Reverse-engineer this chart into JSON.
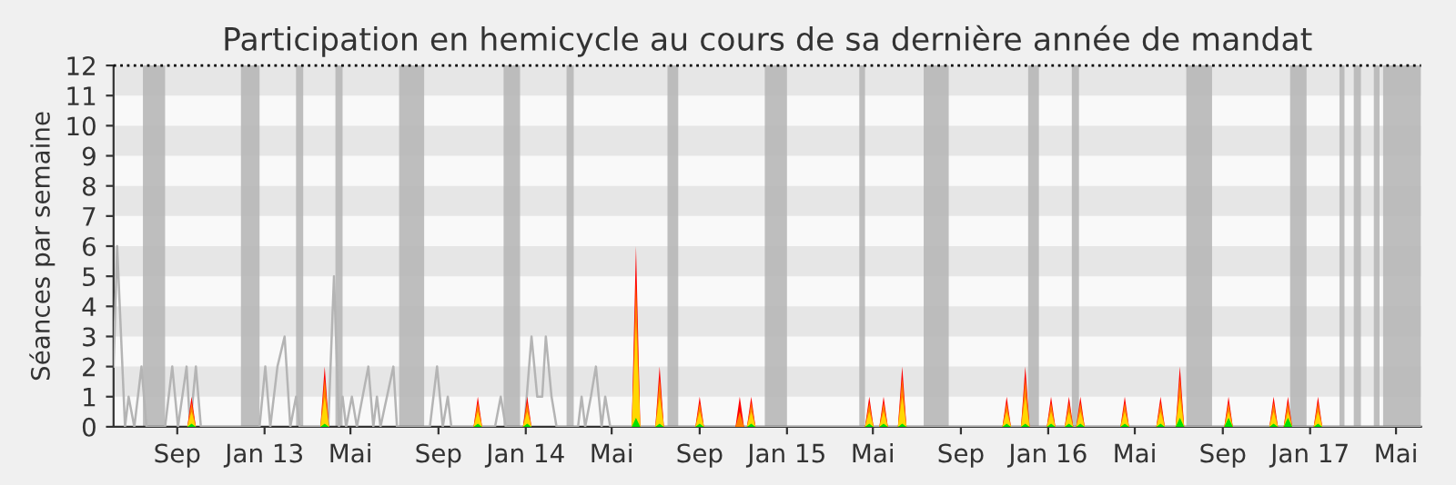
{
  "chart_data": {
    "type": "area",
    "title": "Participation en hemicycle au cours de sa dernière année de mandat",
    "ylabel": "Séances par semaine",
    "xlim": [
      "2012-06-04",
      "2017-06-05"
    ],
    "xticks": [
      {
        "value": "2012-09-01",
        "label": "Sep"
      },
      {
        "value": "2013-01-01",
        "label": "Jan 13"
      },
      {
        "value": "2013-05-01",
        "label": "Mai"
      },
      {
        "value": "2013-09-01",
        "label": "Sep"
      },
      {
        "value": "2014-01-01",
        "label": "Jan 14"
      },
      {
        "value": "2014-05-01",
        "label": "Mai"
      },
      {
        "value": "2014-09-01",
        "label": "Sep"
      },
      {
        "value": "2015-01-01",
        "label": "Jan 15"
      },
      {
        "value": "2015-05-01",
        "label": "Mai"
      },
      {
        "value": "2015-09-01",
        "label": "Sep"
      },
      {
        "value": "2016-01-01",
        "label": "Jan 16"
      },
      {
        "value": "2016-05-01",
        "label": "Mai"
      },
      {
        "value": "2016-09-01",
        "label": "Sep"
      },
      {
        "value": "2017-01-01",
        "label": "Jan 17"
      },
      {
        "value": "2017-05-01",
        "label": "Mai"
      }
    ],
    "ylim": [
      0,
      12
    ],
    "yticks": [
      0,
      1,
      2,
      3,
      4,
      5,
      6,
      7,
      8,
      9,
      10,
      11,
      12
    ],
    "grid": false,
    "legend": false,
    "x": [
      "2012-09-15",
      "2012-09-21",
      "2012-09-27",
      "2013-03-20",
      "2013-03-26",
      "2013-04-01",
      "2013-10-20",
      "2013-10-26",
      "2013-11-01",
      "2013-12-28",
      "2014-01-03",
      "2014-01-09",
      "2014-05-29",
      "2014-06-04",
      "2014-06-10",
      "2014-07-01",
      "2014-07-07",
      "2014-07-13",
      "2014-08-26",
      "2014-09-01",
      "2014-09-07",
      "2014-10-21",
      "2014-10-27",
      "2014-11-02",
      "2014-11-06",
      "2014-11-12",
      "2014-11-18",
      "2015-04-20",
      "2015-04-26",
      "2015-05-02",
      "2015-05-10",
      "2015-05-16",
      "2015-05-22",
      "2015-06-05",
      "2015-06-11",
      "2015-06-17",
      "2015-10-29",
      "2015-11-04",
      "2015-11-10",
      "2015-11-24",
      "2015-11-30",
      "2015-12-06",
      "2015-12-30",
      "2016-01-05",
      "2016-01-11",
      "2016-01-24",
      "2016-01-30",
      "2016-02-05",
      "2016-02-09",
      "2016-02-15",
      "2016-02-21",
      "2016-04-11",
      "2016-04-17",
      "2016-04-23",
      "2016-05-31",
      "2016-06-06",
      "2016-06-12",
      "2016-06-27",
      "2016-07-03",
      "2016-07-09",
      "2016-09-03",
      "2016-09-09",
      "2016-09-15",
      "2016-11-05",
      "2016-11-11",
      "2016-11-17",
      "2016-11-25",
      "2016-12-01",
      "2016-12-07",
      "2017-01-06",
      "2017-01-12",
      "2017-01-18"
    ],
    "series": [
      {
        "type": "line",
        "color": "#b4b4b4",
        "x": [
          "2012-06-04",
          "2012-06-09",
          "2012-06-20",
          "2012-06-25",
          "2012-07-03",
          "2012-07-13",
          "2012-07-20",
          "2012-08-15",
          "2012-08-25",
          "2012-09-02",
          "2012-09-14",
          "2012-09-19",
          "2012-09-27",
          "2012-10-04",
          "2012-12-25",
          "2013-01-02",
          "2013-01-09",
          "2013-01-19",
          "2013-01-29",
          "2013-02-06",
          "2013-02-14",
          "2013-02-19",
          "2013-03-31",
          "2013-04-08",
          "2013-04-15",
          "2013-04-20",
          "2013-04-25",
          "2013-05-03",
          "2013-05-10",
          "2013-05-26",
          "2013-06-02",
          "2013-06-07",
          "2013-06-12",
          "2013-06-30",
          "2013-07-05",
          "2013-08-20",
          "2013-08-30",
          "2013-09-07",
          "2013-09-14",
          "2013-09-19",
          "2013-11-19",
          "2013-11-27",
          "2013-12-04",
          "2013-12-30",
          "2014-01-09",
          "2014-01-17",
          "2014-01-24",
          "2014-01-29",
          "2014-02-06",
          "2014-02-13",
          "2014-02-18",
          "2014-03-15",
          "2014-03-20",
          "2014-03-25",
          "2014-04-02",
          "2014-04-09",
          "2014-04-17",
          "2014-04-22",
          "2014-04-29",
          "2017-06-05"
        ],
        "values": [
          2,
          6,
          0,
          1,
          0,
          2,
          0,
          0,
          2,
          0,
          2,
          0,
          2,
          0,
          0,
          2,
          0,
          2,
          3,
          0,
          1,
          0,
          0,
          5,
          0,
          1,
          0,
          1,
          0,
          2,
          0,
          1,
          0,
          2,
          0,
          0,
          2,
          0,
          1,
          0,
          0,
          1,
          0,
          0,
          3,
          1,
          1,
          3,
          1,
          0,
          0,
          0,
          1,
          0,
          1,
          2,
          0,
          1,
          0,
          0
        ]
      },
      {
        "color": "#ff0000",
        "values": [
          0,
          1,
          0,
          0,
          2,
          0,
          0,
          1,
          0,
          0,
          1,
          0,
          0,
          6,
          0,
          0,
          2,
          0,
          0,
          1,
          0,
          0,
          1,
          0,
          0,
          1,
          0,
          0,
          1,
          0,
          0,
          1,
          0,
          0,
          2,
          0,
          0,
          1,
          0,
          0,
          2,
          0,
          0,
          1,
          0,
          0,
          1,
          0,
          0,
          1,
          0,
          0,
          1,
          0,
          0,
          1,
          0,
          0,
          2,
          0,
          0,
          1,
          0,
          0,
          1,
          0,
          0,
          1,
          0,
          0,
          1,
          0
        ]
      },
      {
        "color": "#ff8000",
        "values": [
          0,
          0.8,
          0,
          0,
          1.6,
          0,
          0,
          0.8,
          0,
          0,
          0.8,
          0,
          0,
          4.8,
          0,
          0,
          1.6,
          0,
          0,
          0.8,
          0,
          0,
          0.5,
          0,
          0,
          0.8,
          0,
          0,
          0.8,
          0,
          0,
          0.8,
          0,
          0,
          1.6,
          0,
          0,
          0.8,
          0,
          0,
          1.6,
          0,
          0,
          0.8,
          0,
          0,
          0.8,
          0,
          0,
          0.8,
          0,
          0,
          0.8,
          0,
          0,
          0.8,
          0,
          0,
          1.6,
          0,
          0,
          0.8,
          0,
          0,
          0.8,
          0,
          0,
          0.8,
          0,
          0,
          0.8,
          0
        ]
      },
      {
        "color": "#ffd700",
        "values": [
          0,
          0.5,
          0,
          0,
          1,
          0,
          0,
          0.5,
          0,
          0,
          0.5,
          0,
          0,
          3.5,
          0,
          0,
          1,
          0,
          0,
          0.5,
          0,
          0,
          0,
          0,
          0,
          0.5,
          0,
          0,
          0.5,
          0,
          0,
          0.5,
          0,
          0,
          1,
          0,
          0,
          0.5,
          0,
          0,
          1,
          0,
          0,
          0.5,
          0,
          0,
          0.5,
          0,
          0,
          0.5,
          0,
          0,
          0.5,
          0,
          0,
          0.5,
          0,
          0,
          1,
          0,
          0,
          0.5,
          0,
          0,
          0.5,
          0,
          0,
          0.5,
          0,
          0,
          0.5,
          0
        ]
      },
      {
        "color": "#00e000",
        "values": [
          0,
          0.1,
          0,
          0,
          0.1,
          0,
          0,
          0.1,
          0,
          0,
          0.1,
          0,
          0,
          0.3,
          0,
          0,
          0.1,
          0,
          0,
          0.1,
          0,
          0,
          0,
          0,
          0,
          0.1,
          0,
          0,
          0.1,
          0,
          0,
          0.1,
          0,
          0,
          0.1,
          0,
          0,
          0.1,
          0,
          0,
          0.1,
          0,
          0,
          0.1,
          0,
          0,
          0.1,
          0,
          0,
          0.1,
          0,
          0,
          0.1,
          0,
          0,
          0.1,
          0,
          0,
          0.3,
          0,
          0,
          0.3,
          0,
          0,
          0.1,
          0,
          0,
          0.3,
          0,
          0,
          0.1,
          0
        ]
      }
    ],
    "bands": [
      {
        "axis": "y",
        "from": 1,
        "to": 2,
        "color": "#e6e6e6"
      },
      {
        "axis": "y",
        "from": 3,
        "to": 4,
        "color": "#e6e6e6"
      },
      {
        "axis": "y",
        "from": 5,
        "to": 6,
        "color": "#e6e6e6"
      },
      {
        "axis": "y",
        "from": 7,
        "to": 8,
        "color": "#e6e6e6"
      },
      {
        "axis": "y",
        "from": 9,
        "to": 10,
        "color": "#e6e6e6"
      },
      {
        "axis": "y",
        "from": 11,
        "to": 12,
        "color": "#e6e6e6"
      },
      {
        "axis": "x",
        "from": "2012-07-15",
        "to": "2012-08-15",
        "color": "#b4b4b4"
      },
      {
        "axis": "x",
        "from": "2012-11-29",
        "to": "2012-12-25",
        "color": "#b4b4b4"
      },
      {
        "axis": "x",
        "from": "2013-02-14",
        "to": "2013-02-24",
        "color": "#b4b4b4"
      },
      {
        "axis": "x",
        "from": "2013-04-10",
        "to": "2013-04-20",
        "color": "#b4b4b4"
      },
      {
        "axis": "x",
        "from": "2013-07-08",
        "to": "2013-08-12",
        "color": "#b4b4b4"
      },
      {
        "axis": "x",
        "from": "2013-12-01",
        "to": "2013-12-24",
        "color": "#b4b4b4"
      },
      {
        "axis": "x",
        "from": "2014-02-27",
        "to": "2014-03-09",
        "color": "#b4b4b4"
      },
      {
        "axis": "x",
        "from": "2014-07-18",
        "to": "2014-08-02",
        "color": "#b4b4b4"
      },
      {
        "axis": "x",
        "from": "2014-12-01",
        "to": "2015-01-01",
        "color": "#b4b4b4"
      },
      {
        "axis": "x",
        "from": "2015-04-12",
        "to": "2015-04-20",
        "color": "#b4b4b4"
      },
      {
        "axis": "x",
        "from": "2015-07-11",
        "to": "2015-08-15",
        "color": "#b4b4b4"
      },
      {
        "axis": "x",
        "from": "2015-12-04",
        "to": "2015-12-19",
        "color": "#b4b4b4"
      },
      {
        "axis": "x",
        "from": "2016-02-03",
        "to": "2016-02-13",
        "color": "#b4b4b4"
      },
      {
        "axis": "x",
        "from": "2016-07-12",
        "to": "2016-08-17",
        "color": "#b4b4b4"
      },
      {
        "axis": "x",
        "from": "2016-12-04",
        "to": "2016-12-27",
        "color": "#b4b4b4"
      },
      {
        "axis": "x",
        "from": "2017-02-11",
        "to": "2017-02-18",
        "color": "#b4b4b4"
      },
      {
        "axis": "x",
        "from": "2017-03-03",
        "to": "2017-03-13",
        "color": "#b4b4b4"
      },
      {
        "axis": "x",
        "from": "2017-03-31",
        "to": "2017-04-08",
        "color": "#b4b4b4"
      },
      {
        "axis": "x",
        "from": "2017-04-13",
        "to": "2017-06-05",
        "color": "#b4b4b4"
      }
    ],
    "ref_lines": [
      {
        "axis": "y",
        "value": 12,
        "color": "#000000",
        "line_style": "dotted"
      }
    ]
  }
}
